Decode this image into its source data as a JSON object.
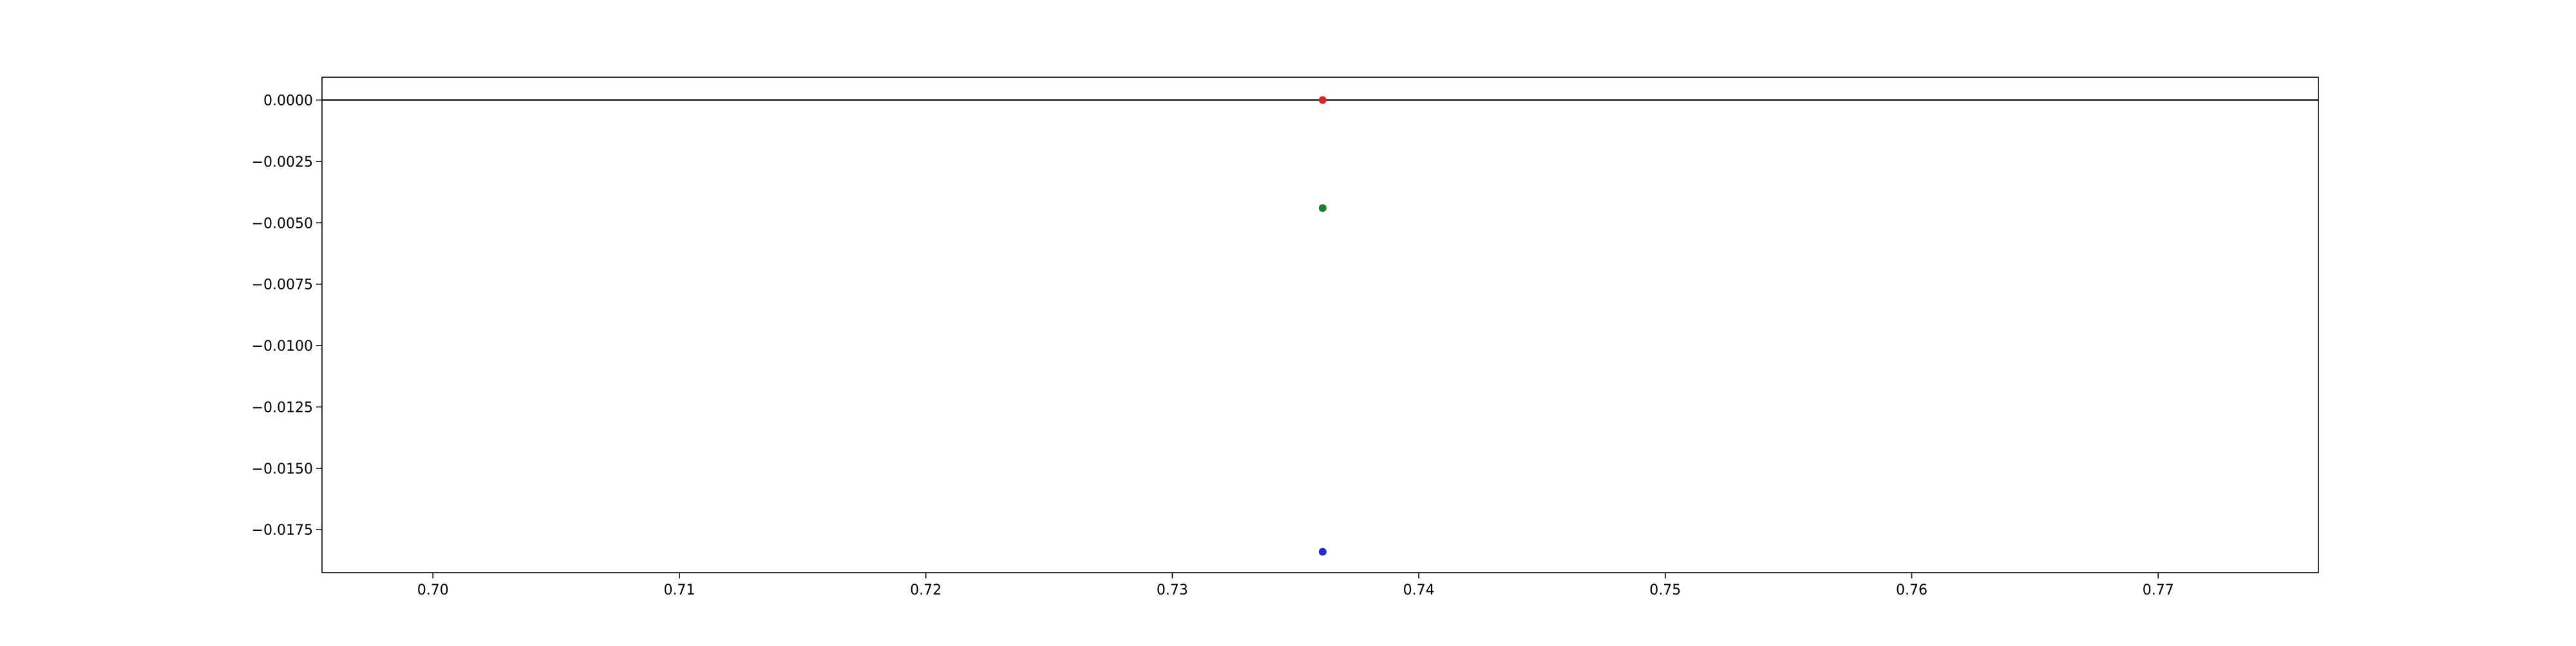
{
  "chart_data": {
    "type": "scatter",
    "title": "",
    "xlabel": "",
    "ylabel": "",
    "xlim": [
      0.6955,
      0.7765
    ],
    "ylim": [
      -0.01925,
      0.00093
    ],
    "x_ticks": [
      0.7,
      0.71,
      0.72,
      0.73,
      0.74,
      0.75,
      0.76,
      0.77
    ],
    "x_tick_labels": [
      "0.70",
      "0.71",
      "0.72",
      "0.73",
      "0.74",
      "0.75",
      "0.76",
      "0.77"
    ],
    "y_ticks": [
      0.0,
      -0.0025,
      -0.005,
      -0.0075,
      -0.01,
      -0.0125,
      -0.015,
      -0.0175
    ],
    "y_tick_labels": [
      "0.0000",
      "−0.0025",
      "−0.0050",
      "−0.0075",
      "−0.0100",
      "−0.0125",
      "−0.0150",
      "−0.0175"
    ],
    "reference_line": {
      "y": 0.0,
      "color": "#000000"
    },
    "grid": false,
    "series": [
      {
        "color": "#d62728",
        "x": [
          0.7361
        ],
        "y": [
          0.0
        ]
      },
      {
        "color": "#1a7f2e",
        "x": [
          0.7361
        ],
        "y": [
          -0.0044
        ]
      },
      {
        "color": "#1f2bd6",
        "x": [
          0.7361
        ],
        "y": [
          -0.0184
        ]
      }
    ]
  }
}
